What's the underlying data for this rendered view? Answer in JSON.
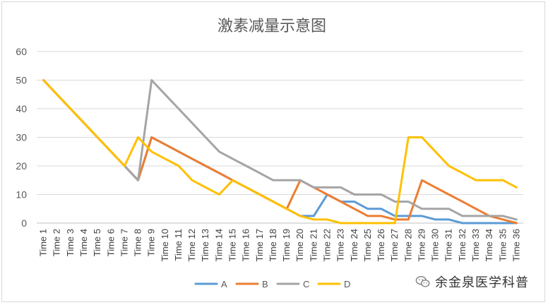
{
  "chart_data": {
    "type": "line",
    "title": "激素减量示意图",
    "xlabel": "",
    "ylabel": "",
    "ylim": [
      0,
      60
    ],
    "yticks": [
      0,
      10,
      20,
      30,
      40,
      50,
      60
    ],
    "grid": true,
    "legend_position": "bottom",
    "categories": [
      "Time 1",
      "Time 2",
      "Time 3",
      "Time 4",
      "Time 5",
      "Time 6",
      "Time 7",
      "Time 8",
      "Time 9",
      "Time 10",
      "Time 11",
      "Time 12",
      "Time 13",
      "Time 14",
      "Time 15",
      "Time 16",
      "Time 17",
      "Time 18",
      "Time 19",
      "Time 20",
      "Time 21",
      "Time 22",
      "Time 23",
      "Time 24",
      "Time 25",
      "Time 26",
      "Time 27",
      "Time 28",
      "Time 29",
      "Time 30",
      "Time 31",
      "Time 32",
      "Time 33",
      "Time 34",
      "Time 35",
      "Time 36"
    ],
    "series": [
      {
        "name": "A",
        "color": "#5b9bd5",
        "values": [
          50,
          45,
          40,
          35,
          30,
          25,
          20,
          15,
          30,
          27.5,
          25,
          22.5,
          20,
          17.5,
          15,
          12.5,
          10,
          7.5,
          5,
          2.5,
          2.5,
          10,
          7.5,
          7.5,
          5,
          5,
          2.5,
          2.5,
          2.5,
          1.25,
          1.25,
          0,
          0,
          0,
          0,
          0
        ]
      },
      {
        "name": "B",
        "color": "#ed7d31",
        "values": [
          50,
          45,
          40,
          35,
          30,
          25,
          20,
          15,
          30,
          27.5,
          25,
          22.5,
          20,
          17.5,
          15,
          12.5,
          10,
          7.5,
          5,
          15,
          12.5,
          10,
          7.5,
          5,
          2.5,
          2.5,
          1.25,
          1.25,
          15,
          12.5,
          10,
          7.5,
          5,
          2.5,
          1.25,
          0
        ]
      },
      {
        "name": "C",
        "color": "#a5a5a5",
        "values": [
          50,
          45,
          40,
          35,
          30,
          25,
          20,
          15,
          50,
          45,
          40,
          35,
          30,
          25,
          22.5,
          20,
          17.5,
          15,
          15,
          15,
          12.5,
          12.5,
          12.5,
          10,
          10,
          10,
          7.5,
          7.5,
          5,
          5,
          5,
          2.5,
          2.5,
          2.5,
          2.5,
          1.25
        ]
      },
      {
        "name": "D",
        "color": "#ffc000",
        "values": [
          50,
          45,
          40,
          35,
          30,
          25,
          20,
          30,
          25,
          22.5,
          20,
          15,
          12.5,
          10,
          15,
          12.5,
          10,
          7.5,
          5,
          2.5,
          1.25,
          1.25,
          0,
          0,
          0,
          0,
          0,
          30,
          30,
          25,
          20,
          17.5,
          15,
          15,
          15,
          12.5
        ]
      }
    ]
  },
  "watermark": {
    "text": "余金泉医学科普",
    "icon": "wechat-icon"
  }
}
